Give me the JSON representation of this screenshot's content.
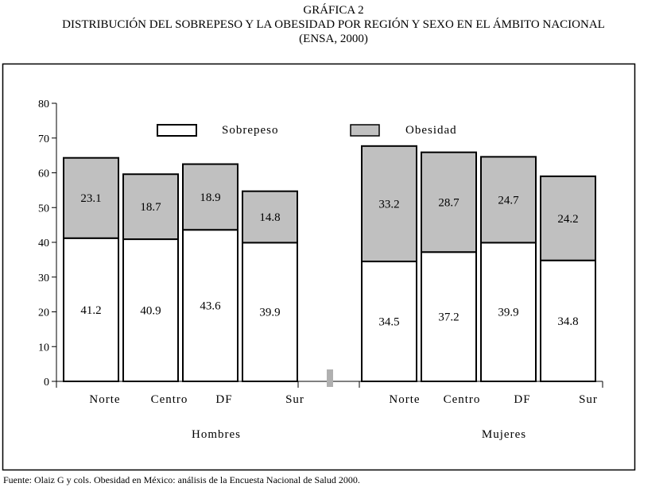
{
  "header": {
    "figure_label": "GRÁFICA 2",
    "title": "DISTRIBUCIÓN DEL SOBREPESO Y LA OBESIDAD POR REGIÓN Y SEXO EN EL ÁMBITO NACIONAL",
    "subtitle": "(ENSA, 2000)"
  },
  "footer": {
    "source": "Fuente: Olaiz G y cols. Obesidad en México: análisis de la Encuesta Nacional de Salud 2000."
  },
  "colors": {
    "sobrepeso": "#ffffff",
    "obesidad": "#c0c0c0",
    "separator": "#b0b0b0",
    "stroke": "#000000"
  },
  "chart_data": {
    "type": "bar",
    "stacked": true,
    "title": "DISTRIBUCIÓN DEL SOBREPESO Y LA OBESIDAD POR REGIÓN Y SEXO EN EL ÁMBITO NACIONAL",
    "xlabel": "",
    "ylabel": "",
    "ylim": [
      0,
      80
    ],
    "yticks": [
      "0",
      "10",
      "20",
      "30",
      "40",
      "50",
      "60",
      "70",
      "80"
    ],
    "grid": false,
    "legend_position": "top",
    "groups": [
      {
        "label": "Hombres",
        "categories": [
          "Norte",
          "Centro",
          "DF",
          "Sur"
        ]
      },
      {
        "label": "Mujeres",
        "categories": [
          "Norte",
          "Centro",
          "DF",
          "Sur"
        ]
      }
    ],
    "series": [
      {
        "name": "Sobrepeso",
        "values": [
          [
            41.2,
            40.9,
            43.6,
            39.9
          ],
          [
            34.5,
            37.2,
            39.9,
            34.8
          ]
        ]
      },
      {
        "name": "Obesidad",
        "values": [
          [
            23.1,
            18.7,
            18.9,
            14.8
          ],
          [
            33.2,
            28.7,
            24.7,
            24.2
          ]
        ]
      }
    ]
  }
}
